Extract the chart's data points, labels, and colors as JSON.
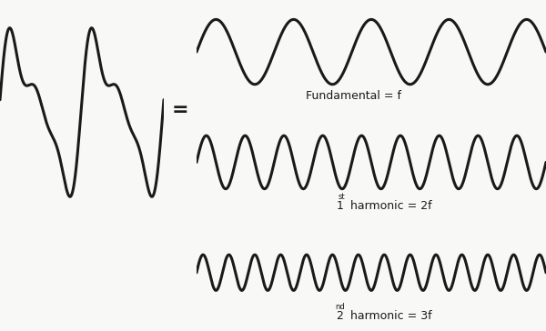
{
  "bg_color": "#f8f8f6",
  "line_color": "#1a1a1a",
  "line_width": 2.2,
  "label_fundamental": "Fundamental = f",
  "label_1st_num": "1",
  "label_1st_sup": "st",
  "label_1st_rest": " harmonic = 2f",
  "label_2nd_num": "2",
  "label_2nd_sup": "nd",
  "label_2nd_rest": " harmonic = 3f",
  "label_fontsize": 9,
  "sup_fontsize": 6,
  "equals_fontsize": 16
}
